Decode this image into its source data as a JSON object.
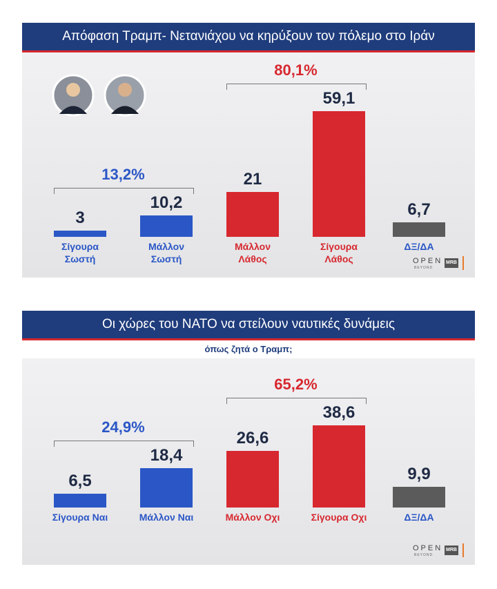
{
  "chart_data": [
    {
      "type": "bar",
      "title": "Απόφαση Τραμπ- Νετανιάχου  να κηρύξουν τον πόλεμο στο Ιράν",
      "categories": [
        "Σίγουρα Σωστή",
        "Μάλλον Σωστή",
        "Μάλλον Λάθος",
        "Σίγουρα Λάθος",
        "ΔΞ/ΔΑ"
      ],
      "values": [
        3,
        10.2,
        21,
        59.1,
        6.7
      ],
      "value_labels": [
        "3",
        "10,2",
        "21",
        "59,1",
        "6,7"
      ],
      "colors": [
        "#2a56c6",
        "#2a56c6",
        "#d7282f",
        "#d7282f",
        "#5b5b5b"
      ],
      "label_colors": [
        "#2a56c6",
        "#2a56c6",
        "#d7282f",
        "#d7282f",
        "#2a56c6"
      ],
      "groups": [
        {
          "label": "13,2%",
          "categories": [
            0,
            1
          ],
          "color": "#2a56c6"
        },
        {
          "label": "80,1%",
          "categories": [
            2,
            3
          ],
          "color": "#d7282f"
        }
      ],
      "logo": "OPEN",
      "logo_sub": "BEYOND",
      "badge": "MRB"
    },
    {
      "type": "bar",
      "title": "Οι χώρες του ΝΑΤΟ να στείλουν ναυτικές δυνάμεις",
      "subtitle": "όπως ζητά ο Τραμπ;",
      "categories": [
        "Σίγουρα Ναι",
        "Μάλλον Ναι",
        "Μάλλον Οχι",
        "Σίγουρα Οχι",
        "ΔΞ/ΔΑ"
      ],
      "values": [
        6.5,
        18.4,
        26.6,
        38.6,
        9.9
      ],
      "value_labels": [
        "6,5",
        "18,4",
        "26,6",
        "38,6",
        "9,9"
      ],
      "colors": [
        "#2a56c6",
        "#2a56c6",
        "#d7282f",
        "#d7282f",
        "#5b5b5b"
      ],
      "label_colors": [
        "#2a56c6",
        "#2a56c6",
        "#d7282f",
        "#d7282f",
        "#2a56c6"
      ],
      "groups": [
        {
          "label": "24,9%",
          "categories": [
            0,
            1
          ],
          "color": "#2a56c6"
        },
        {
          "label": "65,2%",
          "categories": [
            2,
            3
          ],
          "color": "#d7282f"
        }
      ],
      "logo": "OPEN",
      "logo_sub": "BEYOND",
      "badge": "MRB"
    }
  ]
}
